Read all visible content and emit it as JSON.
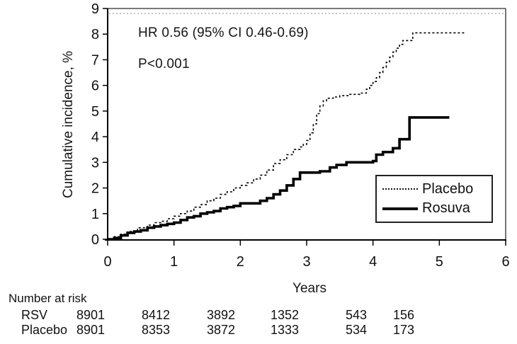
{
  "chart_data": {
    "type": "line",
    "subtype": "cumulative-incidence-step-curve",
    "title": "",
    "xlabel": "Years",
    "ylabel": "Cumulative incidence, %",
    "xlim": [
      0,
      6
    ],
    "ylim": [
      0,
      9
    ],
    "xticks": [
      0,
      1,
      2,
      3,
      4,
      5,
      6
    ],
    "yticks": [
      0,
      1,
      2,
      3,
      4,
      5,
      6,
      7,
      8,
      9
    ],
    "grid": "off",
    "annotations": {
      "hr_text": "HR 0.56 (95% CI 0.46-0.69)",
      "p_text": "P<0.001"
    },
    "legend": {
      "position": "lower-right",
      "entries": [
        {
          "label": "Placebo",
          "line_style": "dotted"
        },
        {
          "label": "Rosuva",
          "line_style": "solid"
        }
      ]
    },
    "series": [
      {
        "name": "Placebo",
        "line_style": "dotted",
        "color": "#000000",
        "step_points": [
          [
            0,
            0
          ],
          [
            0.1,
            0.1
          ],
          [
            0.2,
            0.2
          ],
          [
            0.3,
            0.3
          ],
          [
            0.45,
            0.45
          ],
          [
            0.6,
            0.55
          ],
          [
            0.7,
            0.65
          ],
          [
            0.8,
            0.7
          ],
          [
            0.9,
            0.8
          ],
          [
            1.0,
            0.9
          ],
          [
            1.1,
            1.0
          ],
          [
            1.2,
            1.1
          ],
          [
            1.3,
            1.25
          ],
          [
            1.4,
            1.35
          ],
          [
            1.5,
            1.5
          ],
          [
            1.6,
            1.6
          ],
          [
            1.7,
            1.75
          ],
          [
            1.8,
            1.85
          ],
          [
            1.9,
            2.0
          ],
          [
            2.0,
            2.1
          ],
          [
            2.1,
            2.2
          ],
          [
            2.2,
            2.35
          ],
          [
            2.3,
            2.5
          ],
          [
            2.4,
            2.7
          ],
          [
            2.5,
            2.95
          ],
          [
            2.6,
            3.1
          ],
          [
            2.7,
            3.3
          ],
          [
            2.8,
            3.5
          ],
          [
            2.9,
            3.6
          ],
          [
            2.95,
            3.7
          ],
          [
            3.0,
            3.85
          ],
          [
            3.05,
            4.15
          ],
          [
            3.1,
            4.5
          ],
          [
            3.15,
            4.9
          ],
          [
            3.2,
            5.2
          ],
          [
            3.25,
            5.4
          ],
          [
            3.3,
            5.5
          ],
          [
            3.4,
            5.55
          ],
          [
            3.5,
            5.6
          ],
          [
            3.65,
            5.65
          ],
          [
            3.8,
            5.7
          ],
          [
            3.9,
            5.85
          ],
          [
            3.95,
            6.0
          ],
          [
            4.0,
            6.15
          ],
          [
            4.05,
            6.3
          ],
          [
            4.1,
            6.5
          ],
          [
            4.15,
            6.7
          ],
          [
            4.2,
            6.9
          ],
          [
            4.25,
            7.1
          ],
          [
            4.3,
            7.3
          ],
          [
            4.35,
            7.45
          ],
          [
            4.4,
            7.6
          ],
          [
            4.45,
            7.75
          ],
          [
            4.6,
            8.05
          ],
          [
            5.4,
            8.05
          ]
        ]
      },
      {
        "name": "Rosuva",
        "line_style": "solid",
        "color": "#000000",
        "step_points": [
          [
            0,
            0
          ],
          [
            0.1,
            0.05
          ],
          [
            0.2,
            0.15
          ],
          [
            0.3,
            0.25
          ],
          [
            0.4,
            0.3
          ],
          [
            0.5,
            0.35
          ],
          [
            0.6,
            0.45
          ],
          [
            0.7,
            0.5
          ],
          [
            0.8,
            0.55
          ],
          [
            0.9,
            0.6
          ],
          [
            1.0,
            0.65
          ],
          [
            1.1,
            0.75
          ],
          [
            1.2,
            0.85
          ],
          [
            1.3,
            0.9
          ],
          [
            1.4,
            1.0
          ],
          [
            1.5,
            1.05
          ],
          [
            1.6,
            1.1
          ],
          [
            1.7,
            1.2
          ],
          [
            1.8,
            1.25
          ],
          [
            1.9,
            1.3
          ],
          [
            2.0,
            1.4
          ],
          [
            2.3,
            1.5
          ],
          [
            2.4,
            1.6
          ],
          [
            2.5,
            1.75
          ],
          [
            2.6,
            1.9
          ],
          [
            2.7,
            2.1
          ],
          [
            2.8,
            2.35
          ],
          [
            2.9,
            2.6
          ],
          [
            3.2,
            2.65
          ],
          [
            3.35,
            2.8
          ],
          [
            3.45,
            2.9
          ],
          [
            3.6,
            3.0
          ],
          [
            4.0,
            3.05
          ],
          [
            4.05,
            3.3
          ],
          [
            4.15,
            3.4
          ],
          [
            4.3,
            3.55
          ],
          [
            4.4,
            3.9
          ],
          [
            4.55,
            4.75
          ],
          [
            5.15,
            4.75
          ]
        ]
      }
    ],
    "number_at_risk": {
      "title": "Number at risk",
      "rows": [
        {
          "label": "RSV",
          "values": [
            "8901",
            "8412",
            "3892",
            "1352",
            "543",
            "156"
          ]
        },
        {
          "label": "Placebo",
          "values": [
            "8901",
            "8353",
            "3872",
            "1333",
            "534",
            "173"
          ]
        }
      ]
    }
  }
}
